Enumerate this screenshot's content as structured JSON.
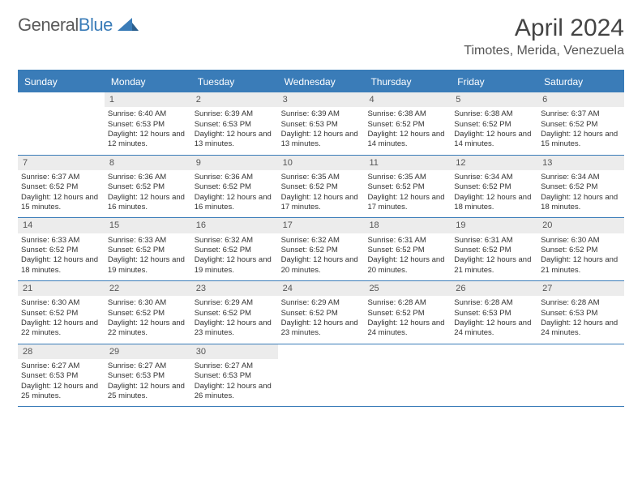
{
  "logo": {
    "text1": "General",
    "text2": "Blue"
  },
  "title": "April 2024",
  "location": "Timotes, Merida, Venezuela",
  "dayHeaders": [
    "Sunday",
    "Monday",
    "Tuesday",
    "Wednesday",
    "Thursday",
    "Friday",
    "Saturday"
  ],
  "colors": {
    "brand": "#3a7cb8",
    "headerText": "#ffffff",
    "dayBar": "#ececec",
    "text": "#333333",
    "background": "#ffffff"
  },
  "weeks": [
    [
      {
        "day": "",
        "sunrise": "",
        "sunset": "",
        "daylight": ""
      },
      {
        "day": "1",
        "sunrise": "Sunrise: 6:40 AM",
        "sunset": "Sunset: 6:53 PM",
        "daylight": "Daylight: 12 hours and 12 minutes."
      },
      {
        "day": "2",
        "sunrise": "Sunrise: 6:39 AM",
        "sunset": "Sunset: 6:53 PM",
        "daylight": "Daylight: 12 hours and 13 minutes."
      },
      {
        "day": "3",
        "sunrise": "Sunrise: 6:39 AM",
        "sunset": "Sunset: 6:53 PM",
        "daylight": "Daylight: 12 hours and 13 minutes."
      },
      {
        "day": "4",
        "sunrise": "Sunrise: 6:38 AM",
        "sunset": "Sunset: 6:52 PM",
        "daylight": "Daylight: 12 hours and 14 minutes."
      },
      {
        "day": "5",
        "sunrise": "Sunrise: 6:38 AM",
        "sunset": "Sunset: 6:52 PM",
        "daylight": "Daylight: 12 hours and 14 minutes."
      },
      {
        "day": "6",
        "sunrise": "Sunrise: 6:37 AM",
        "sunset": "Sunset: 6:52 PM",
        "daylight": "Daylight: 12 hours and 15 minutes."
      }
    ],
    [
      {
        "day": "7",
        "sunrise": "Sunrise: 6:37 AM",
        "sunset": "Sunset: 6:52 PM",
        "daylight": "Daylight: 12 hours and 15 minutes."
      },
      {
        "day": "8",
        "sunrise": "Sunrise: 6:36 AM",
        "sunset": "Sunset: 6:52 PM",
        "daylight": "Daylight: 12 hours and 16 minutes."
      },
      {
        "day": "9",
        "sunrise": "Sunrise: 6:36 AM",
        "sunset": "Sunset: 6:52 PM",
        "daylight": "Daylight: 12 hours and 16 minutes."
      },
      {
        "day": "10",
        "sunrise": "Sunrise: 6:35 AM",
        "sunset": "Sunset: 6:52 PM",
        "daylight": "Daylight: 12 hours and 17 minutes."
      },
      {
        "day": "11",
        "sunrise": "Sunrise: 6:35 AM",
        "sunset": "Sunset: 6:52 PM",
        "daylight": "Daylight: 12 hours and 17 minutes."
      },
      {
        "day": "12",
        "sunrise": "Sunrise: 6:34 AM",
        "sunset": "Sunset: 6:52 PM",
        "daylight": "Daylight: 12 hours and 18 minutes."
      },
      {
        "day": "13",
        "sunrise": "Sunrise: 6:34 AM",
        "sunset": "Sunset: 6:52 PM",
        "daylight": "Daylight: 12 hours and 18 minutes."
      }
    ],
    [
      {
        "day": "14",
        "sunrise": "Sunrise: 6:33 AM",
        "sunset": "Sunset: 6:52 PM",
        "daylight": "Daylight: 12 hours and 18 minutes."
      },
      {
        "day": "15",
        "sunrise": "Sunrise: 6:33 AM",
        "sunset": "Sunset: 6:52 PM",
        "daylight": "Daylight: 12 hours and 19 minutes."
      },
      {
        "day": "16",
        "sunrise": "Sunrise: 6:32 AM",
        "sunset": "Sunset: 6:52 PM",
        "daylight": "Daylight: 12 hours and 19 minutes."
      },
      {
        "day": "17",
        "sunrise": "Sunrise: 6:32 AM",
        "sunset": "Sunset: 6:52 PM",
        "daylight": "Daylight: 12 hours and 20 minutes."
      },
      {
        "day": "18",
        "sunrise": "Sunrise: 6:31 AM",
        "sunset": "Sunset: 6:52 PM",
        "daylight": "Daylight: 12 hours and 20 minutes."
      },
      {
        "day": "19",
        "sunrise": "Sunrise: 6:31 AM",
        "sunset": "Sunset: 6:52 PM",
        "daylight": "Daylight: 12 hours and 21 minutes."
      },
      {
        "day": "20",
        "sunrise": "Sunrise: 6:30 AM",
        "sunset": "Sunset: 6:52 PM",
        "daylight": "Daylight: 12 hours and 21 minutes."
      }
    ],
    [
      {
        "day": "21",
        "sunrise": "Sunrise: 6:30 AM",
        "sunset": "Sunset: 6:52 PM",
        "daylight": "Daylight: 12 hours and 22 minutes."
      },
      {
        "day": "22",
        "sunrise": "Sunrise: 6:30 AM",
        "sunset": "Sunset: 6:52 PM",
        "daylight": "Daylight: 12 hours and 22 minutes."
      },
      {
        "day": "23",
        "sunrise": "Sunrise: 6:29 AM",
        "sunset": "Sunset: 6:52 PM",
        "daylight": "Daylight: 12 hours and 23 minutes."
      },
      {
        "day": "24",
        "sunrise": "Sunrise: 6:29 AM",
        "sunset": "Sunset: 6:52 PM",
        "daylight": "Daylight: 12 hours and 23 minutes."
      },
      {
        "day": "25",
        "sunrise": "Sunrise: 6:28 AM",
        "sunset": "Sunset: 6:52 PM",
        "daylight": "Daylight: 12 hours and 24 minutes."
      },
      {
        "day": "26",
        "sunrise": "Sunrise: 6:28 AM",
        "sunset": "Sunset: 6:53 PM",
        "daylight": "Daylight: 12 hours and 24 minutes."
      },
      {
        "day": "27",
        "sunrise": "Sunrise: 6:28 AM",
        "sunset": "Sunset: 6:53 PM",
        "daylight": "Daylight: 12 hours and 24 minutes."
      }
    ],
    [
      {
        "day": "28",
        "sunrise": "Sunrise: 6:27 AM",
        "sunset": "Sunset: 6:53 PM",
        "daylight": "Daylight: 12 hours and 25 minutes."
      },
      {
        "day": "29",
        "sunrise": "Sunrise: 6:27 AM",
        "sunset": "Sunset: 6:53 PM",
        "daylight": "Daylight: 12 hours and 25 minutes."
      },
      {
        "day": "30",
        "sunrise": "Sunrise: 6:27 AM",
        "sunset": "Sunset: 6:53 PM",
        "daylight": "Daylight: 12 hours and 26 minutes."
      },
      {
        "day": "",
        "sunrise": "",
        "sunset": "",
        "daylight": ""
      },
      {
        "day": "",
        "sunrise": "",
        "sunset": "",
        "daylight": ""
      },
      {
        "day": "",
        "sunrise": "",
        "sunset": "",
        "daylight": ""
      },
      {
        "day": "",
        "sunrise": "",
        "sunset": "",
        "daylight": ""
      }
    ]
  ]
}
